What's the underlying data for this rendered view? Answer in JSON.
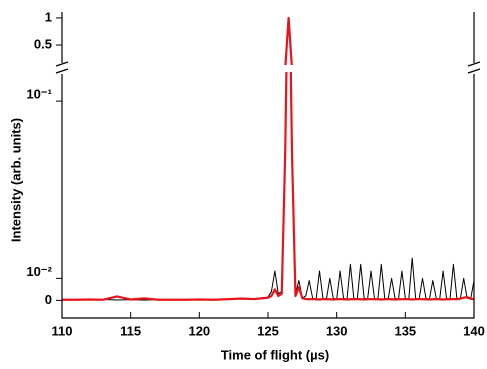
{
  "chart_data": {
    "type": "line",
    "xlabel": "Time of flight (µs)",
    "ylabel": "Intensity (arb. units)",
    "xlim": [
      110,
      140
    ],
    "xticks": [
      110,
      115,
      120,
      125,
      130,
      135,
      140
    ],
    "yscale": "symlog",
    "linthresh": 0.01,
    "ylim": [
      -0.008,
      0.146
    ],
    "yticks": [
      0,
      {
        "value": 0.01,
        "label": "10⁻²"
      },
      {
        "value": 0.1,
        "label": "10⁻¹"
      }
    ],
    "y_break": {
      "ylim": [
        0.13,
        1.11
      ],
      "yticks": [
        0.5,
        1
      ]
    },
    "x": [
      110,
      111,
      112,
      113,
      114,
      115,
      116,
      117,
      118,
      119,
      120,
      121,
      122,
      123,
      124,
      125,
      125.25,
      125.5,
      125.75,
      126,
      126.25,
      126.5,
      126.75,
      127,
      127.25,
      127.5,
      127.75,
      128,
      128.25,
      128.5,
      128.75,
      129,
      129.25,
      129.5,
      129.75,
      130,
      130.25,
      130.5,
      130.75,
      131,
      131.25,
      131.5,
      131.75,
      132,
      132.25,
      132.5,
      132.75,
      133,
      133.25,
      133.5,
      133.75,
      134,
      134.25,
      134.5,
      134.75,
      135,
      135.25,
      135.5,
      135.75,
      136,
      136.25,
      136.5,
      136.75,
      137,
      137.25,
      137.5,
      137.75,
      138,
      138.25,
      138.5,
      138.75,
      139,
      139.25,
      139.5,
      139.75,
      140
    ],
    "series": [
      {
        "color": "#000000",
        "width": 1,
        "values": [
          0.0002,
          0.0003,
          0.0002,
          0.0004,
          0.0002,
          0.0003,
          0.0002,
          0.0003,
          0.0002,
          0.0002,
          0.0003,
          0.0004,
          0.0006,
          0.001,
          0.0008,
          0.0015,
          0.004,
          0.011,
          0.003,
          0.004,
          0.06,
          1.0,
          0.06,
          0.003,
          0.009,
          0.001,
          0.002,
          0.009,
          0.001,
          0.0005,
          0.011,
          0.001,
          0.0005,
          0.01,
          0.001,
          0.0005,
          0.011,
          0.001,
          0.0005,
          0.012,
          0.001,
          0.0005,
          0.012,
          0.001,
          0.0005,
          0.011,
          0.001,
          0.0005,
          0.012,
          0.001,
          0.0005,
          0.01,
          0.001,
          0.0005,
          0.011,
          0.001,
          0.0005,
          0.013,
          0.001,
          0.0005,
          0.01,
          0.001,
          0.0005,
          0.009,
          0.001,
          0.0005,
          0.011,
          0.001,
          0.0005,
          0.012,
          0.001,
          0.0005,
          0.01,
          0.001,
          0.0005,
          0.009
        ]
      },
      {
        "color": "#e8141b",
        "width": 2.2,
        "values": [
          0.0003,
          0.0003,
          0.0004,
          0.0003,
          0.0018,
          0.0004,
          0.0009,
          0.0003,
          0.0003,
          0.0003,
          0.0004,
          0.0003,
          0.0005,
          0.0008,
          0.0006,
          0.0012,
          0.002,
          0.005,
          0.002,
          0.003,
          0.05,
          1.0,
          0.05,
          0.002,
          0.006,
          0.001,
          0.0006,
          0.0005,
          0.0006,
          0.0005,
          0.0004,
          0.0006,
          0.0005,
          0.0005,
          0.0004,
          0.0005,
          0.0006,
          0.0005,
          0.0004,
          0.0005,
          0.0005,
          0.0006,
          0.0005,
          0.0004,
          0.0005,
          0.0006,
          0.0005,
          0.0005,
          0.0004,
          0.0005,
          0.0006,
          0.0005,
          0.0004,
          0.0005,
          0.0005,
          0.0006,
          0.0005,
          0.0004,
          0.0005,
          0.0006,
          0.0005,
          0.0005,
          0.0004,
          0.0005,
          0.0006,
          0.0005,
          0.0004,
          0.0005,
          0.0005,
          0.0006,
          0.0005,
          0.0008,
          0.0012,
          0.0015,
          0.0008,
          0.0005
        ]
      }
    ]
  }
}
